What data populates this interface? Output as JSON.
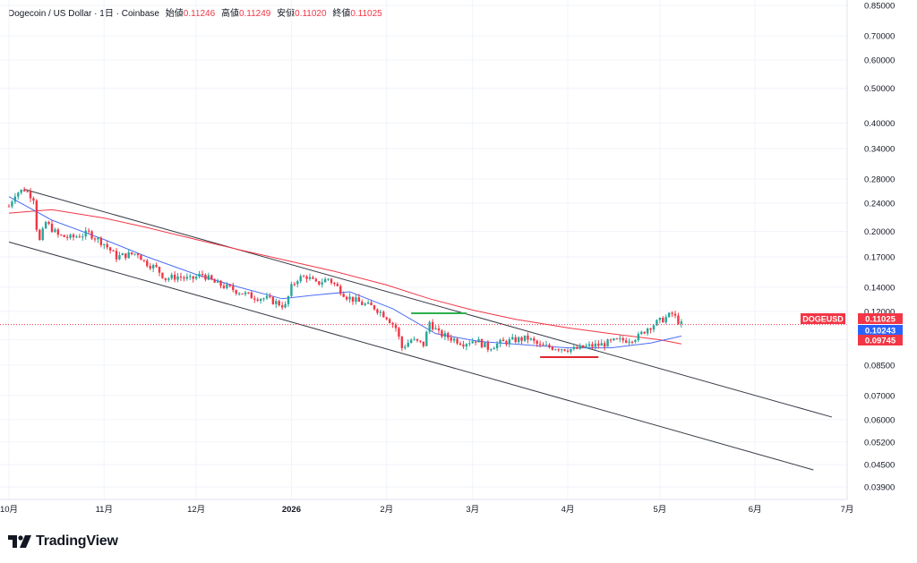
{
  "header": {
    "symbol_desc": "Dogecoin / US Dollar",
    "sep1": " · ",
    "interval": "1日",
    "sep2": " · ",
    "exchange": "Coinbase",
    "open_label": "始値",
    "open_value": "0.11246",
    "high_label": "高値",
    "high_value": "0.11249",
    "low_label": "安値",
    "low_value": "0.11020",
    "close_label": "終値",
    "close_value": "0.11025"
  },
  "brand": {
    "name": "TradingView"
  },
  "colors": {
    "up": "#26a69a",
    "down": "#f23645",
    "ma_fast": "#4c6ef5",
    "ma_slow": "#f23645",
    "channel": "#363a45",
    "resistance_mark": "#2bb24c",
    "support_mark": "#e0262f"
  },
  "chart_data": {
    "type": "candlestick",
    "symbol": "DOGEUSD",
    "y_scale": "log",
    "ylim": [
      0.036,
      0.88
    ],
    "y_ticks": [
      "0.85000",
      "0.70000",
      "0.60000",
      "0.50000",
      "0.40000",
      "0.34000",
      "0.28000",
      "0.24000",
      "0.20000",
      "0.17000",
      "0.14000",
      "0.12000",
      "0.10000",
      "0.08500",
      "0.07000",
      "0.06000",
      "0.05200",
      "0.04500",
      "0.03900"
    ],
    "x_ticks": [
      "10月",
      "11月",
      "12月",
      "2026",
      "2月",
      "3月",
      "4月",
      "5月",
      "6月",
      "7月"
    ],
    "x_range": [
      "2025-10-01",
      "2026-07-01"
    ],
    "price_labels": [
      {
        "label": "DOGEUSD",
        "value": "0.11025",
        "color": "#f23645"
      },
      {
        "label": "",
        "value": "0.10243",
        "color": "#2962ff"
      },
      {
        "label": "",
        "value": "0.09745",
        "color": "#f23645"
      }
    ],
    "last_price": 0.11025,
    "candles_anchor": [
      [
        "2025-10-01",
        0.235
      ],
      [
        "2025-10-03",
        0.255
      ],
      [
        "2025-10-06",
        0.262
      ],
      [
        "2025-10-09",
        0.248
      ],
      [
        "2025-10-10",
        0.205
      ],
      [
        "2025-10-11",
        0.188
      ],
      [
        "2025-10-13",
        0.212
      ],
      [
        "2025-10-17",
        0.195
      ],
      [
        "2025-10-21",
        0.192
      ],
      [
        "2025-10-27",
        0.198
      ],
      [
        "2025-11-01",
        0.185
      ],
      [
        "2025-11-05",
        0.17
      ],
      [
        "2025-11-08",
        0.172
      ],
      [
        "2025-11-12",
        0.174
      ],
      [
        "2025-11-14",
        0.165
      ],
      [
        "2025-11-18",
        0.158
      ],
      [
        "2025-11-21",
        0.148
      ],
      [
        "2025-11-25",
        0.15
      ],
      [
        "2025-11-29",
        0.147
      ],
      [
        "2025-12-03",
        0.152
      ],
      [
        "2025-12-07",
        0.144
      ],
      [
        "2025-12-11",
        0.14
      ],
      [
        "2025-12-15",
        0.136
      ],
      [
        "2025-12-19",
        0.132
      ],
      [
        "2025-12-24",
        0.13
      ],
      [
        "2025-12-30",
        0.124
      ],
      [
        "2026-01-01",
        0.14
      ],
      [
        "2026-01-03",
        0.148
      ],
      [
        "2026-01-06",
        0.15
      ],
      [
        "2026-01-09",
        0.143
      ],
      [
        "2026-01-13",
        0.148
      ],
      [
        "2026-01-16",
        0.14
      ],
      [
        "2026-01-19",
        0.132
      ],
      [
        "2026-01-24",
        0.126
      ],
      [
        "2026-01-28",
        0.123
      ],
      [
        "2026-02-01",
        0.116
      ],
      [
        "2026-02-04",
        0.108
      ],
      [
        "2026-02-06",
        0.095
      ],
      [
        "2026-02-09",
        0.1
      ],
      [
        "2026-02-13",
        0.097
      ],
      [
        "2026-02-15",
        0.112
      ],
      [
        "2026-02-18",
        0.104
      ],
      [
        "2026-02-22",
        0.101
      ],
      [
        "2026-02-26",
        0.098
      ],
      [
        "2026-03-02",
        0.1
      ],
      [
        "2026-03-06",
        0.095
      ],
      [
        "2026-03-10",
        0.098
      ],
      [
        "2026-03-15",
        0.1
      ],
      [
        "2026-03-19",
        0.101
      ],
      [
        "2026-03-23",
        0.096
      ],
      [
        "2026-03-29",
        0.095
      ],
      [
        "2026-04-03",
        0.094
      ],
      [
        "2026-04-08",
        0.096
      ],
      [
        "2026-04-12",
        0.097
      ],
      [
        "2026-04-16",
        0.099
      ],
      [
        "2026-04-20",
        0.1
      ],
      [
        "2026-04-24",
        0.102
      ],
      [
        "2026-04-27",
        0.108
      ],
      [
        "2026-05-02",
        0.114
      ],
      [
        "2026-05-05",
        0.118
      ],
      [
        "2026-05-08",
        0.1103
      ]
    ],
    "ma_fast": [
      [
        "2025-10-01",
        0.25
      ],
      [
        "2025-10-15",
        0.215
      ],
      [
        "2025-11-01",
        0.19
      ],
      [
        "2025-11-15",
        0.17
      ],
      [
        "2025-12-01",
        0.152
      ],
      [
        "2025-12-15",
        0.14
      ],
      [
        "2025-12-29",
        0.13
      ],
      [
        "2026-01-08",
        0.133
      ],
      [
        "2026-01-20",
        0.136
      ],
      [
        "2026-02-03",
        0.122
      ],
      [
        "2026-02-17",
        0.104
      ],
      [
        "2026-03-03",
        0.099
      ],
      [
        "2026-03-17",
        0.097
      ],
      [
        "2026-04-01",
        0.095
      ],
      [
        "2026-04-15",
        0.095
      ],
      [
        "2026-04-28",
        0.098
      ],
      [
        "2026-05-08",
        0.10243
      ]
    ],
    "ma_slow": [
      [
        "2025-10-01",
        0.225
      ],
      [
        "2025-10-15",
        0.23
      ],
      [
        "2025-11-01",
        0.218
      ],
      [
        "2025-11-15",
        0.205
      ],
      [
        "2025-12-01",
        0.19
      ],
      [
        "2025-12-15",
        0.178
      ],
      [
        "2026-01-01",
        0.165
      ],
      [
        "2026-01-15",
        0.155
      ],
      [
        "2026-02-01",
        0.142
      ],
      [
        "2026-02-15",
        0.13
      ],
      [
        "2026-03-01",
        0.121
      ],
      [
        "2026-03-15",
        0.114
      ],
      [
        "2026-04-01",
        0.108
      ],
      [
        "2026-04-15",
        0.104
      ],
      [
        "2026-05-01",
        0.1
      ],
      [
        "2026-05-08",
        0.09745
      ]
    ],
    "channel_upper": [
      [
        "2025-10-06",
        0.262
      ],
      [
        "2026-06-26",
        0.061
      ]
    ],
    "channel_lower": [
      [
        "2025-10-01",
        0.187
      ],
      [
        "2026-06-20",
        0.0435
      ]
    ],
    "resistance_mark": [
      [
        "2026-02-09",
        0.1185
      ],
      [
        "2026-02-27",
        0.1185
      ]
    ],
    "support_mark": [
      [
        "2026-03-23",
        0.0895
      ],
      [
        "2026-04-11",
        0.0895
      ]
    ]
  }
}
